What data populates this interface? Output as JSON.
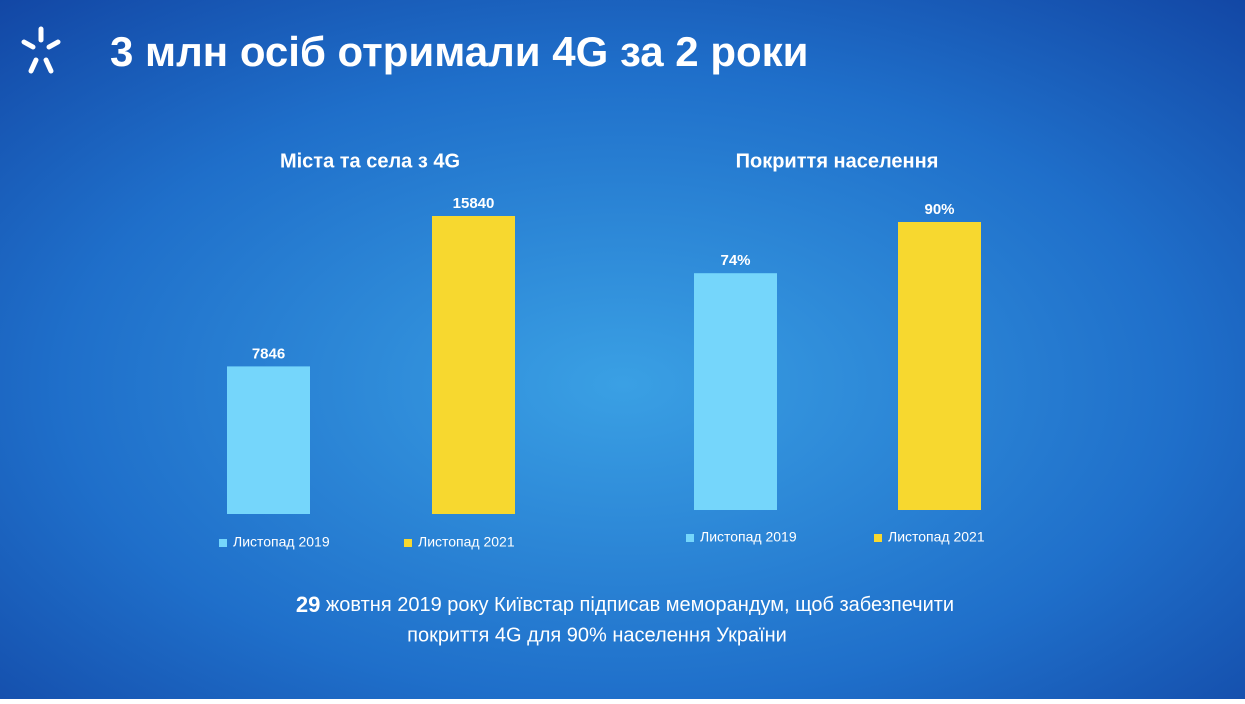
{
  "title": "3 млн осіб отримали 4G за 2 роки",
  "caption": {
    "lead": "29",
    "line1": "жовтня 2019 року Київстар підписав меморандум, щоб забезпечити",
    "line2": "покриття 4G для 90% населення України"
  },
  "chart_data": [
    {
      "type": "bar",
      "title": "Міста та села з 4G",
      "series": [
        {
          "name": "Листопад 2019",
          "color": "#75d6fb",
          "values": [
            7846
          ]
        },
        {
          "name": "Листопад 2021",
          "color": "#f7d82f",
          "values": [
            15840
          ]
        }
      ]
    },
    {
      "type": "bar",
      "title": "Покриття населення",
      "series": [
        {
          "name": "Листопад 2019",
          "color": "#75d6fb",
          "values": [
            74
          ],
          "value_labels": [
            "74%"
          ]
        },
        {
          "name": "Листопад 2021",
          "color": "#f7d82f",
          "values": [
            90
          ],
          "value_labels": [
            "90%"
          ]
        }
      ]
    }
  ]
}
